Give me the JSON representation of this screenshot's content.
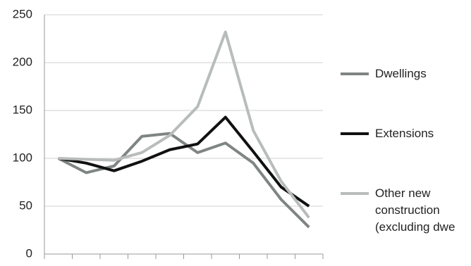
{
  "chart_data": {
    "type": "line",
    "categories": [
      null,
      null,
      null,
      null,
      null,
      null,
      null,
      null,
      null,
      null
    ],
    "series": [
      {
        "name": "Dwellings",
        "color": "#7f8583",
        "values": [
          100,
          85,
          92,
          123,
          126,
          106,
          116,
          95,
          57,
          28
        ]
      },
      {
        "name": "Extensions",
        "color": "#111111",
        "values": [
          100,
          95,
          87,
          97,
          109,
          115,
          143,
          107,
          70,
          50
        ]
      },
      {
        "name": "Other new construction (excluding dwe",
        "color": "#b8bcbb",
        "values": [
          100,
          99,
          98,
          106,
          124,
          154,
          232,
          129,
          76,
          38
        ]
      }
    ],
    "ylim": [
      0,
      250
    ],
    "yticks": [
      0,
      50,
      100,
      150,
      200,
      250
    ],
    "grid": true,
    "legend": "right"
  }
}
